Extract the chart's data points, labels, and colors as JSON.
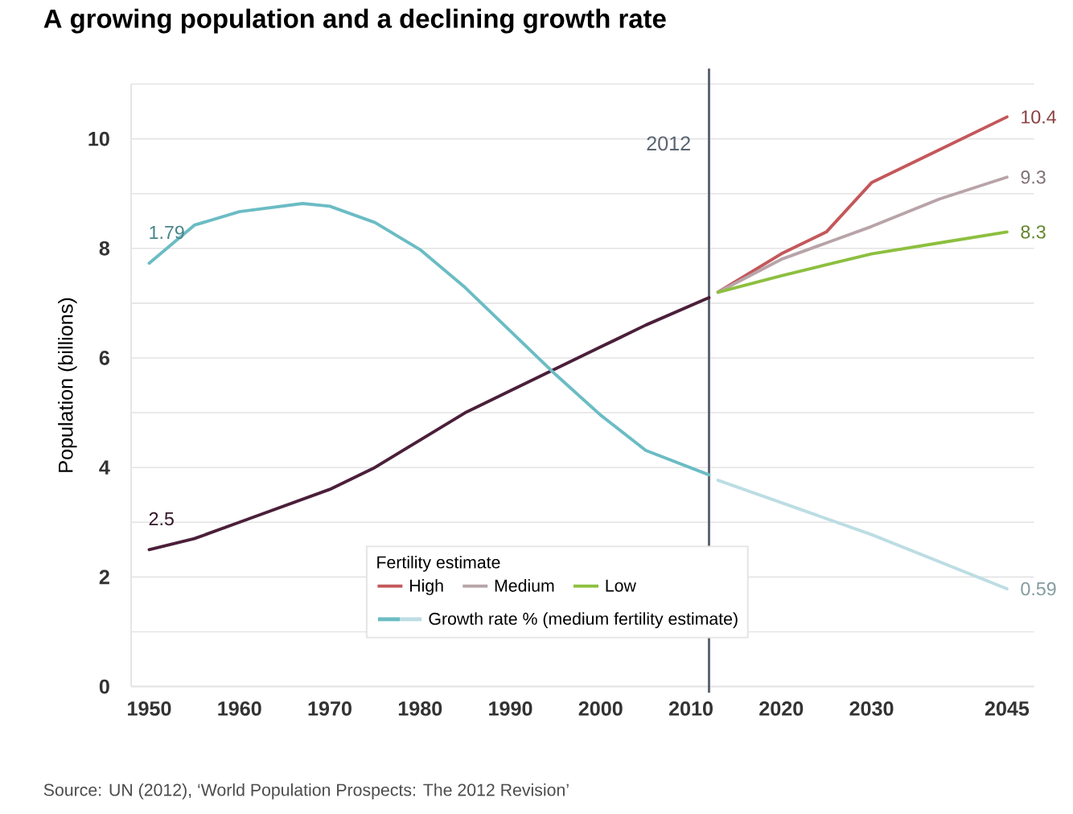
{
  "chart_data": {
    "type": "line",
    "title": "A growing population and a declining growth rate",
    "ylabel": "Population (billions)",
    "legend_title": "Fertility estimate",
    "annotations": [
      "Source: UN (2012), ‘World Population Prospects: The 2012 Revision’"
    ],
    "xlim": [
      1948,
      2048
    ],
    "xticks": [
      1950,
      1960,
      1970,
      1980,
      1990,
      2000,
      2010,
      2020,
      2030,
      2045
    ],
    "ylim": [
      0,
      11
    ],
    "yticks": [
      0,
      {
        "value": 1,
        "label": null
      },
      2,
      {
        "value": 3,
        "label": null
      },
      4,
      {
        "value": 5,
        "label": null
      },
      6,
      {
        "value": 7,
        "label": null
      },
      8,
      {
        "value": 9,
        "label": null
      },
      10,
      {
        "value": 11,
        "label": null
      }
    ],
    "y2lim": [
      0.23,
      2.45
    ],
    "grid": "y",
    "legend": "bottom",
    "marker": "none",
    "line_style": "solid",
    "ref_lines": [
      {
        "axis": "x",
        "value": 2012,
        "label": "2012",
        "color": "#5a6470"
      }
    ],
    "series": [
      {
        "color": "#4b1f3a",
        "x": [
          1950,
          1955,
          1960,
          1965,
          1970,
          1975,
          1980,
          1985,
          1990,
          1995,
          2000,
          2005,
          2012
        ],
        "values": [
          2.5,
          2.7,
          3.0,
          3.3,
          3.6,
          4.0,
          4.5,
          5.0,
          5.4,
          5.8,
          6.2,
          6.6,
          7.1
        ],
        "value_labels": [
          "2.5",
          null,
          null,
          null,
          null,
          null,
          null,
          null,
          null,
          null,
          null,
          null,
          null
        ]
      },
      {
        "name": "High",
        "color": "#c4575a",
        "x": [
          2013,
          2020,
          2025,
          2030,
          2037.5,
          2045
        ],
        "values": [
          7.2,
          7.9,
          8.3,
          9.2,
          9.8,
          10.4
        ],
        "value_labels": [
          null,
          null,
          null,
          null,
          null,
          "10.4"
        ]
      },
      {
        "name": "Medium",
        "color": "#b8a4a8",
        "x": [
          2013,
          2020,
          2025,
          2030,
          2037.5,
          2045
        ],
        "values": [
          7.2,
          7.8,
          8.1,
          8.4,
          8.9,
          9.3
        ],
        "value_labels": [
          null,
          null,
          null,
          null,
          null,
          "9.3"
        ]
      },
      {
        "name": "Low",
        "color": "#8dbf40",
        "x": [
          2013,
          2020,
          2025,
          2030,
          2037.5,
          2045
        ],
        "values": [
          7.2,
          7.5,
          7.7,
          7.9,
          8.1,
          8.3
        ],
        "value_labels": [
          null,
          null,
          null,
          null,
          null,
          "8.3"
        ]
      },
      {
        "name": "Growth rate % (medium fertility estimate)",
        "axis": "y2",
        "color": "#6bbcc4",
        "x": [
          1950,
          1955,
          1960,
          1967,
          1970,
          1975,
          1980,
          1985,
          1990,
          1995,
          2000,
          2005,
          2012
        ],
        "values": [
          1.79,
          1.93,
          1.98,
          2.01,
          2.0,
          1.94,
          1.84,
          1.7,
          1.54,
          1.38,
          1.23,
          1.1,
          1.01
        ],
        "value_labels": [
          "1.79",
          null,
          null,
          null,
          null,
          null,
          null,
          null,
          null,
          null,
          null,
          null,
          null
        ]
      },
      {
        "axis": "y2",
        "color": "#bcdde3",
        "x": [
          2013,
          2030,
          2045
        ],
        "values": [
          0.99,
          0.79,
          0.59
        ],
        "value_labels": [
          null,
          null,
          "0.59"
        ]
      }
    ]
  }
}
